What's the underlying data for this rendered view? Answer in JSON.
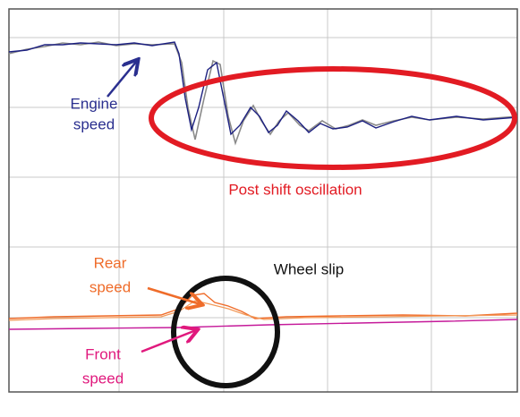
{
  "annotations": {
    "engine_speed": [
      "Engine",
      "speed"
    ],
    "oscillation": "Post shift oscillation",
    "wheel_slip": "Wheel slip",
    "rear_speed": [
      "Rear",
      "speed"
    ],
    "front_speed": [
      "Front",
      "speed"
    ]
  }
}
